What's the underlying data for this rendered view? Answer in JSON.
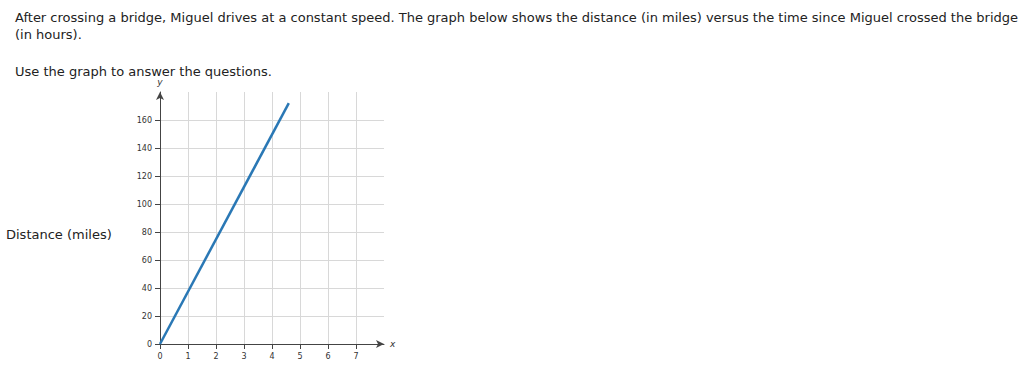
{
  "chart_data": {
    "type": "line",
    "title": "After crossing a bridge, Miguel drives at a constant speed. The graph below shows the distance (in miles) versus the time since Miguel crossed the bridge (in hours).",
    "subtitle": "Use the graph to answer the questions.",
    "xlabel": "x",
    "ylabel": "y",
    "annotations": [
      {
        "text": "Distance (miles)"
      }
    ],
    "x": [
      0,
      4.6
    ],
    "values": [
      0,
      172
    ],
    "color": "#2a78b5",
    "xlim": [
      0,
      8
    ],
    "xticks": [
      0,
      1,
      2,
      3,
      4,
      5,
      6,
      7
    ],
    "ylim": [
      0,
      180
    ],
    "yticks": [
      0,
      20,
      40,
      60,
      80,
      100,
      120,
      140,
      160
    ],
    "grid": true
  }
}
